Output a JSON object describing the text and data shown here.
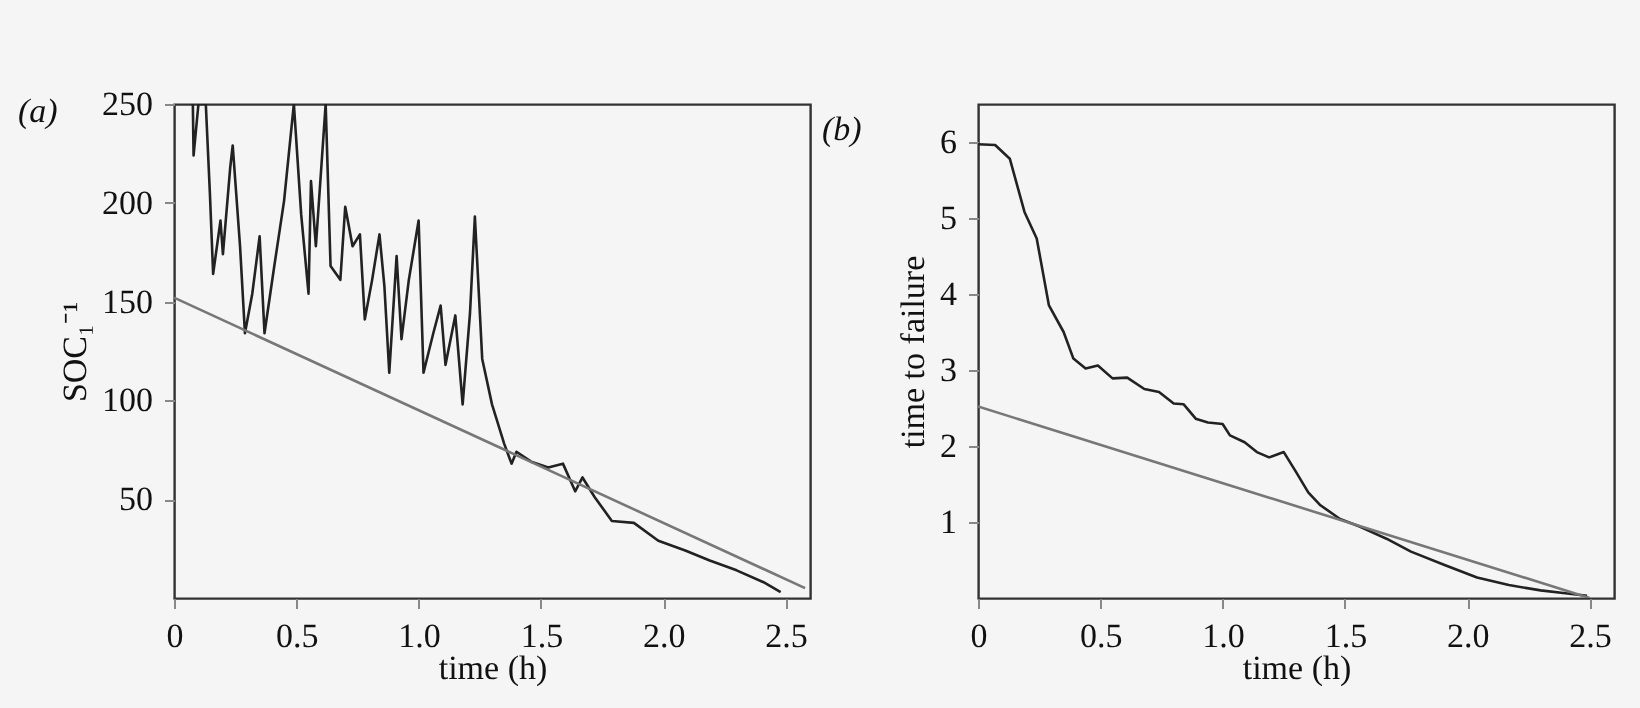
{
  "chart_data": [
    {
      "type": "line",
      "title": "(a)",
      "xlabel": "time (h)",
      "ylabel": "SOC₁⁻¹",
      "xlim": [
        0,
        2.6
      ],
      "ylim": [
        0,
        250
      ],
      "xticks": [
        0,
        {
          "value": 0.5,
          "label": "0.5"
        },
        {
          "value": 1,
          "label": "1.0"
        },
        {
          "value": 1.5,
          "label": "1.5"
        },
        {
          "value": 2,
          "label": "2.0"
        },
        {
          "value": 2.5,
          "label": "2.5"
        }
      ],
      "yticks": [
        50,
        100,
        150,
        200,
        250
      ],
      "grid": false,
      "legend": false,
      "series": [
        {
          "color": "#222222",
          "x": [
            0.077,
            0.08,
            0.1,
            0.13,
            0.147,
            0.16,
            0.19,
            0.2,
            0.23,
            0.24,
            0.27,
            0.29,
            0.32,
            0.35,
            0.37,
            0.41,
            0.45,
            0.49,
            0.52,
            0.55,
            0.56,
            0.58,
            0.62,
            0.64,
            0.68,
            0.7,
            0.73,
            0.76,
            0.78,
            0.81,
            0.84,
            0.86,
            0.88,
            0.91,
            0.93,
            0.96,
            1.0,
            1.02,
            1.06,
            1.09,
            1.11,
            1.15,
            1.18,
            1.21,
            1.23,
            1.26,
            1.3,
            1.35,
            1.38,
            1.4,
            1.46,
            1.53,
            1.59,
            1.64,
            1.67,
            1.72,
            1.79,
            1.88,
            1.98,
            2.09,
            2.19,
            2.3,
            2.41,
            2.48
          ],
          "values": [
            250,
            224,
            250,
            250,
            204,
            164,
            191,
            174,
            218,
            229,
            178,
            134,
            154,
            183,
            134,
            168,
            201,
            250,
            194,
            154,
            211,
            178,
            250,
            168,
            161,
            198,
            178,
            184,
            141,
            161,
            184,
            158,
            114,
            173,
            131,
            161,
            191,
            114,
            134,
            148,
            118,
            143,
            98,
            144,
            193,
            121,
            98,
            78,
            68,
            74,
            69,
            66,
            68,
            54,
            61,
            51,
            39,
            38,
            29,
            24,
            19,
            14,
            8,
            3
          ]
        },
        {
          "color": "#777777",
          "x": [
            0,
            2.58
          ],
          "values": [
            152,
            5
          ]
        }
      ]
    },
    {
      "type": "line",
      "title": "(b)",
      "xlabel": "time (h)",
      "ylabel": "time to failure",
      "xlim": [
        0,
        2.6
      ],
      "ylim": [
        0,
        6.5
      ],
      "xticks": [
        0,
        {
          "value": 0.5,
          "label": "0.5"
        },
        {
          "value": 1,
          "label": "1.0"
        },
        {
          "value": 1.5,
          "label": "1.5"
        },
        {
          "value": 2,
          "label": "2.0"
        },
        {
          "value": 2.5,
          "label": "2.5"
        }
      ],
      "yticks": [
        1,
        2,
        3,
        4,
        5,
        6
      ],
      "grid": false,
      "legend": false,
      "series": [
        {
          "color": "#222222",
          "x": [
            0,
            0.07,
            0.13,
            0.19,
            0.24,
            0.29,
            0.35,
            0.39,
            0.44,
            0.49,
            0.55,
            0.61,
            0.68,
            0.74,
            0.8,
            0.84,
            0.89,
            0.94,
            1.0,
            1.03,
            1.09,
            1.14,
            1.19,
            1.25,
            1.3,
            1.35,
            1.4,
            1.48,
            1.56,
            1.67,
            1.77,
            1.91,
            2.04,
            2.17,
            2.3,
            2.41,
            2.49
          ],
          "values": [
            5.97,
            5.96,
            5.78,
            5.08,
            4.73,
            3.85,
            3.5,
            3.15,
            3.02,
            3.06,
            2.89,
            2.9,
            2.75,
            2.71,
            2.56,
            2.55,
            2.36,
            2.31,
            2.29,
            2.14,
            2.05,
            1.92,
            1.85,
            1.92,
            1.66,
            1.39,
            1.22,
            1.04,
            0.94,
            0.78,
            0.61,
            0.43,
            0.27,
            0.17,
            0.1,
            0.06,
            0.03
          ]
        },
        {
          "color": "#777777",
          "x": [
            0,
            2.5
          ],
          "values": [
            2.52,
            0
          ]
        }
      ]
    }
  ]
}
